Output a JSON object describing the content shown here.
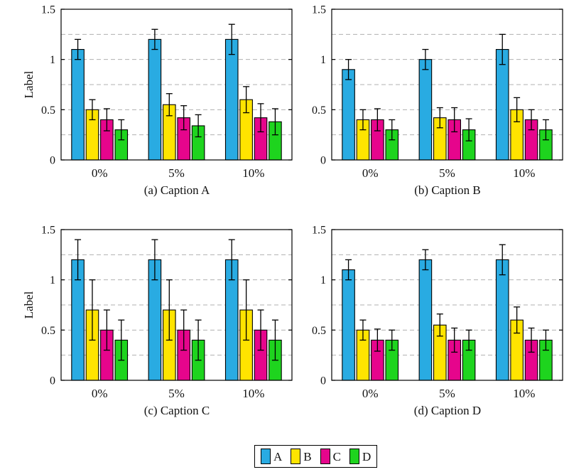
{
  "figure": {
    "background": "#ffffff",
    "axis_color": "#000000",
    "grid_color": "#b0b0b0"
  },
  "legend": {
    "position": "bottom-center",
    "entries": [
      {
        "label": "A",
        "color": "#29ABE2"
      },
      {
        "label": "B",
        "color": "#FFE400"
      },
      {
        "label": "C",
        "color": "#E6058C"
      },
      {
        "label": "D",
        "color": "#1ED41E"
      }
    ]
  },
  "chart_data": [
    {
      "type": "bar",
      "caption": "(a) Caption A",
      "ylabel": "Label",
      "xlabel": "",
      "categories": [
        "0%",
        "5%",
        "10%"
      ],
      "ylim": [
        0,
        1.5
      ],
      "yticks": [
        0,
        0.5,
        1,
        1.5
      ],
      "ytick_labels": [
        "0",
        "0.5",
        "1",
        "1.5"
      ],
      "gridlines_y": [
        0.25,
        0.5,
        0.75,
        1.0,
        1.25
      ],
      "grid": "horizontal dashed",
      "series": [
        {
          "name": "A",
          "values": [
            1.1,
            1.2,
            1.2
          ],
          "errors": [
            0.1,
            0.1,
            0.15
          ]
        },
        {
          "name": "B",
          "values": [
            0.5,
            0.55,
            0.6
          ],
          "errors": [
            0.1,
            0.11,
            0.13
          ]
        },
        {
          "name": "C",
          "values": [
            0.4,
            0.42,
            0.42
          ],
          "errors": [
            0.11,
            0.12,
            0.14
          ]
        },
        {
          "name": "D",
          "values": [
            0.3,
            0.34,
            0.38
          ],
          "errors": [
            0.1,
            0.11,
            0.13
          ]
        }
      ]
    },
    {
      "type": "bar",
      "caption": "(b) Caption B",
      "ylabel": "",
      "xlabel": "",
      "categories": [
        "0%",
        "5%",
        "10%"
      ],
      "ylim": [
        0,
        1.5
      ],
      "yticks": [
        0,
        0.5,
        1,
        1.5
      ],
      "ytick_labels": [
        "0",
        "0.5",
        "1",
        "1.5"
      ],
      "gridlines_y": [
        0.25,
        0.5,
        0.75,
        1.0,
        1.25
      ],
      "grid": "horizontal dashed",
      "series": [
        {
          "name": "A",
          "values": [
            0.9,
            1.0,
            1.1
          ],
          "errors": [
            0.1,
            0.1,
            0.15
          ]
        },
        {
          "name": "B",
          "values": [
            0.4,
            0.42,
            0.5
          ],
          "errors": [
            0.1,
            0.1,
            0.12
          ]
        },
        {
          "name": "C",
          "values": [
            0.4,
            0.4,
            0.4
          ],
          "errors": [
            0.11,
            0.12,
            0.1
          ]
        },
        {
          "name": "D",
          "values": [
            0.3,
            0.3,
            0.3
          ],
          "errors": [
            0.1,
            0.11,
            0.1
          ]
        }
      ]
    },
    {
      "type": "bar",
      "caption": "(c) Caption C",
      "ylabel": "Label",
      "xlabel": "",
      "categories": [
        "0%",
        "5%",
        "10%"
      ],
      "ylim": [
        0,
        1.5
      ],
      "yticks": [
        0,
        0.5,
        1,
        1.5
      ],
      "ytick_labels": [
        "0",
        "0.5",
        "1",
        "1.5"
      ],
      "gridlines_y": [
        0.25,
        0.5,
        0.75,
        1.0,
        1.25
      ],
      "grid": "horizontal dashed",
      "series": [
        {
          "name": "A",
          "values": [
            1.2,
            1.2,
            1.2
          ],
          "errors": [
            0.2,
            0.2,
            0.2
          ]
        },
        {
          "name": "B",
          "values": [
            0.7,
            0.7,
            0.7
          ],
          "errors": [
            0.3,
            0.3,
            0.3
          ]
        },
        {
          "name": "C",
          "values": [
            0.5,
            0.5,
            0.5
          ],
          "errors": [
            0.2,
            0.2,
            0.2
          ]
        },
        {
          "name": "D",
          "values": [
            0.4,
            0.4,
            0.4
          ],
          "errors": [
            0.2,
            0.2,
            0.2
          ]
        }
      ]
    },
    {
      "type": "bar",
      "caption": "(d) Caption D",
      "ylabel": "",
      "xlabel": "",
      "categories": [
        "0%",
        "5%",
        "10%"
      ],
      "ylim": [
        0,
        1.5
      ],
      "yticks": [
        0,
        0.5,
        1,
        1.5
      ],
      "ytick_labels": [
        "0",
        "0.5",
        "1",
        "1.5"
      ],
      "gridlines_y": [
        0.25,
        0.5,
        0.75,
        1.0,
        1.25
      ],
      "grid": "horizontal dashed",
      "series": [
        {
          "name": "A",
          "values": [
            1.1,
            1.2,
            1.2
          ],
          "errors": [
            0.1,
            0.1,
            0.15
          ]
        },
        {
          "name": "B",
          "values": [
            0.5,
            0.55,
            0.6
          ],
          "errors": [
            0.1,
            0.11,
            0.13
          ]
        },
        {
          "name": "C",
          "values": [
            0.4,
            0.4,
            0.4
          ],
          "errors": [
            0.11,
            0.12,
            0.12
          ]
        },
        {
          "name": "D",
          "values": [
            0.4,
            0.4,
            0.4
          ],
          "errors": [
            0.1,
            0.1,
            0.1
          ]
        }
      ]
    }
  ]
}
